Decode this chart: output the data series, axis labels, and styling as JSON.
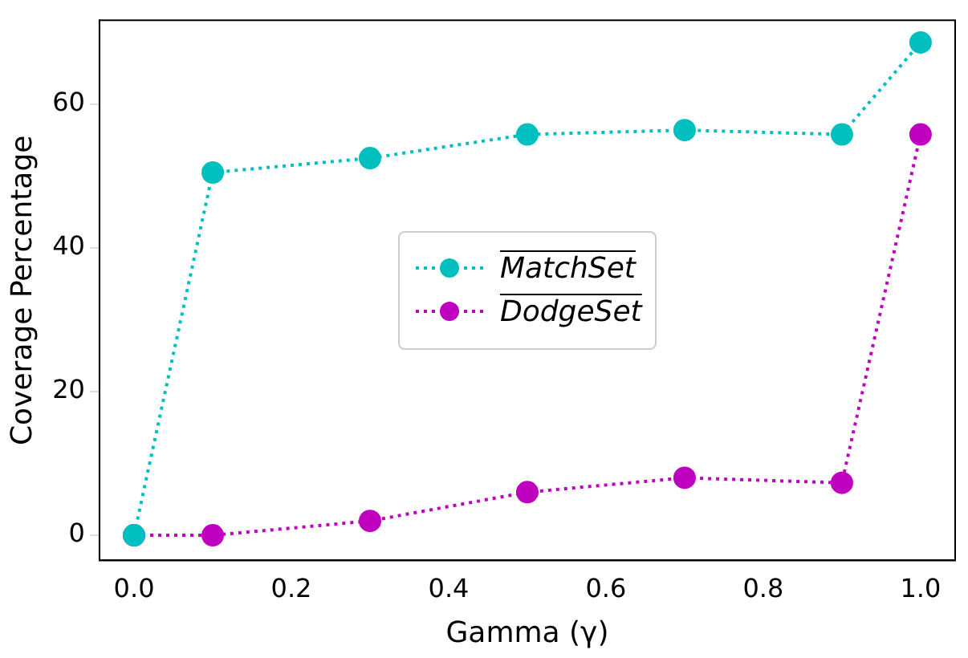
{
  "chart_data": {
    "type": "line",
    "xlabel": "Gamma (γ)",
    "ylabel": "Coverage Percentage",
    "x": [
      0.0,
      0.1,
      0.3,
      0.5,
      0.7,
      0.9,
      1.0
    ],
    "series": [
      {
        "name": "MatchSet",
        "color": "#00bfbf",
        "values": [
          0,
          50.5,
          52.5,
          55.8,
          56.4,
          55.8,
          68.6
        ]
      },
      {
        "name": "DodgeSet",
        "color": "#bf00bf",
        "values": [
          0,
          0,
          2.0,
          6.0,
          8.0,
          7.3,
          55.8
        ]
      }
    ],
    "xlim": [
      -0.044,
      1.044
    ],
    "xticks": [
      {
        "value": 0,
        "label": "0.0"
      },
      {
        "value": 0.2,
        "label": "0.2"
      },
      {
        "value": 0.4,
        "label": "0.4"
      },
      {
        "value": 0.6,
        "label": "0.6"
      },
      {
        "value": 0.8,
        "label": "0.8"
      },
      {
        "value": 1,
        "label": "1.0"
      }
    ],
    "ylim": [
      -3.5,
      71.7
    ],
    "yticks": [
      0,
      20,
      40,
      60
    ],
    "grid": false,
    "legend": "center",
    "marker": "circle",
    "line_style": "dotted"
  }
}
